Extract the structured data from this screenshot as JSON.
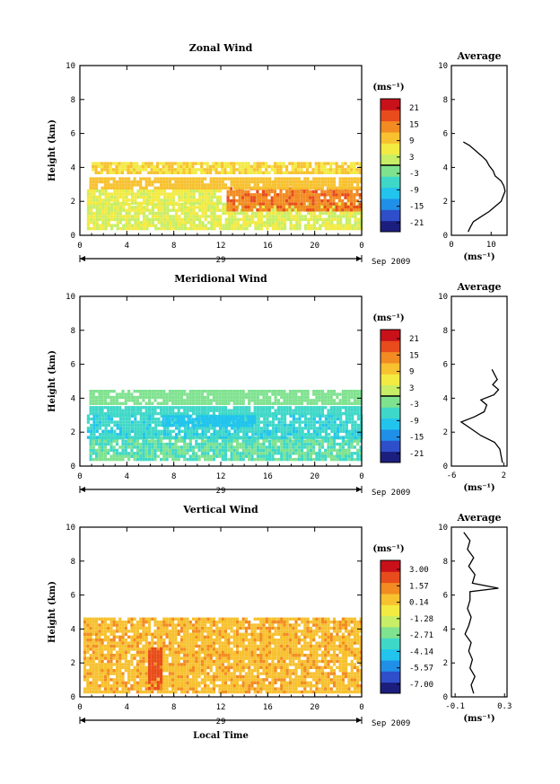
{
  "figure": {
    "date_label": "Sep 2009",
    "day_label": "29",
    "x_axis_label": "Local Time",
    "y_axis_label": "Height (km)",
    "profile_title": "Average",
    "unit_label": "(ms⁻¹)",
    "x_ticks": [
      "0",
      "4",
      "8",
      "12",
      "16",
      "20",
      "0"
    ],
    "y_ticks": [
      "0",
      "2",
      "4",
      "6",
      "8",
      "10"
    ]
  },
  "colors": {
    "colormap": [
      "#1c1e7e",
      "#2e4fc9",
      "#1f8fe8",
      "#22c4ee",
      "#3fd8c8",
      "#7fe28f",
      "#c7ee66",
      "#f3ea42",
      "#f7c12f",
      "#f28b22",
      "#e84b1c",
      "#c9111a"
    ]
  },
  "chart_data": [
    {
      "type": "heatmap",
      "title": "Zonal Wind",
      "xlabel": "",
      "ylabel": "Height (km)",
      "xlim": [
        0,
        24
      ],
      "ylim": [
        0,
        10
      ],
      "colorbar": {
        "label": "(ms⁻¹)",
        "ticks": [
          "21",
          "15",
          "9",
          "3",
          "-3",
          "-9",
          "-15",
          "-21"
        ],
        "range": [
          -24,
          24
        ]
      },
      "bands": [
        {
          "t0": 0.6,
          "t1": 23.9,
          "h0": 0.3,
          "h1": 1.8,
          "v": 4
        },
        {
          "t0": 0.6,
          "t1": 12.0,
          "h0": 1.8,
          "h1": 2.7,
          "v": 5
        },
        {
          "t0": 12.5,
          "t1": 23.9,
          "h0": 1.4,
          "h1": 2.7,
          "v": 15
        },
        {
          "t0": 0.8,
          "t1": 23.9,
          "h0": 2.7,
          "h1": 3.4,
          "v": 10
        },
        {
          "t0": 1.0,
          "t1": 23.9,
          "h0": 3.6,
          "h1": 4.3,
          "v": 8
        }
      ],
      "profile": {
        "title": "Average",
        "xlim": [
          0,
          14
        ],
        "xticks": [
          "0",
          "10"
        ],
        "xlabel": "(ms⁻¹)",
        "heights": [
          0.2,
          0.5,
          0.8,
          1.1,
          1.4,
          1.7,
          2.0,
          2.3,
          2.6,
          2.9,
          3.2,
          3.5,
          3.8,
          4.1,
          4.4,
          4.7,
          5.0,
          5.3,
          5.5
        ],
        "values": [
          4.2,
          4.8,
          5.5,
          7.5,
          9.5,
          11.0,
          12.5,
          13.0,
          13.5,
          13.2,
          12.5,
          11.0,
          10.5,
          9.5,
          8.8,
          7.5,
          6.0,
          4.5,
          3.0
        ]
      }
    },
    {
      "type": "heatmap",
      "title": "Meridional Wind",
      "xlabel": "",
      "ylabel": "Height (km)",
      "xlim": [
        0,
        24
      ],
      "ylim": [
        0,
        10
      ],
      "colorbar": {
        "label": "(ms⁻¹)",
        "ticks": [
          "21",
          "15",
          "9",
          "3",
          "-3",
          "-9",
          "-15",
          "-21"
        ],
        "range": [
          -24,
          24
        ]
      },
      "bands": [
        {
          "t0": 0.8,
          "t1": 23.9,
          "h0": 0.3,
          "h1": 1.6,
          "v": -4
        },
        {
          "t0": 0.6,
          "t1": 23.9,
          "h0": 1.6,
          "h1": 3.0,
          "v": -7
        },
        {
          "t0": 7.0,
          "t1": 15.0,
          "h0": 2.3,
          "h1": 3.0,
          "v": -10
        },
        {
          "t0": 0.8,
          "t1": 23.9,
          "h0": 3.0,
          "h1": 3.5,
          "v": -6
        },
        {
          "t0": 0.8,
          "t1": 23.9,
          "h0": 3.6,
          "h1": 4.4,
          "v": -2
        }
      ],
      "profile": {
        "title": "Average",
        "xlim": [
          -6,
          2.5
        ],
        "xticks": [
          "-6",
          "2"
        ],
        "xlabel": "(ms⁻¹)",
        "heights": [
          0.2,
          0.6,
          1.0,
          1.4,
          1.8,
          2.2,
          2.6,
          2.9,
          3.2,
          3.6,
          3.9,
          4.2,
          4.5,
          4.8,
          5.1,
          5.4,
          5.7
        ],
        "values": [
          1.8,
          1.6,
          1.4,
          0.6,
          -1.5,
          -3.0,
          -4.5,
          -2.5,
          -1.0,
          -0.6,
          -1.5,
          0.5,
          1.2,
          0.3,
          1.0,
          0.6,
          0.2
        ]
      }
    },
    {
      "type": "heatmap",
      "title": "Vertical Wind",
      "xlabel": "Local Time",
      "ylabel": "Height (km)",
      "xlim": [
        0,
        24
      ],
      "ylim": [
        0,
        10
      ],
      "colorbar": {
        "label": "(ms⁻¹)",
        "ticks": [
          "3.00",
          "1.57",
          "0.14",
          "-1.28",
          "-2.71",
          "-4.14",
          "-5.57",
          "-7.00"
        ],
        "range": [
          -7.7,
          3.7
        ]
      },
      "bands": [
        {
          "t0": 0.3,
          "t1": 23.9,
          "h0": 0.2,
          "h1": 3.6,
          "v": 0.6
        },
        {
          "t0": 0.3,
          "t1": 23.9,
          "h0": 3.6,
          "h1": 4.6,
          "v": 0.6
        },
        {
          "t0": 5.8,
          "t1": 6.9,
          "h0": 0.4,
          "h1": 2.8,
          "v": 2.2
        }
      ],
      "profile": {
        "title": "Average",
        "xlim": [
          -0.13,
          0.32
        ],
        "xticks": [
          "-0.1",
          "0.3"
        ],
        "xlabel": "(ms⁻¹)",
        "heights": [
          0.2,
          0.7,
          1.2,
          1.7,
          2.2,
          2.7,
          3.2,
          3.7,
          4.2,
          4.7,
          5.2,
          5.7,
          6.2,
          6.4,
          6.7,
          7.2,
          7.7,
          8.2,
          8.7,
          9.2,
          9.7
        ],
        "values": [
          0.05,
          0.03,
          0.06,
          0.02,
          0.04,
          0.01,
          0.03,
          -0.02,
          0.01,
          0.03,
          0.0,
          0.02,
          0.02,
          0.25,
          0.04,
          0.06,
          0.01,
          0.05,
          0.0,
          0.02,
          -0.03
        ]
      }
    }
  ]
}
